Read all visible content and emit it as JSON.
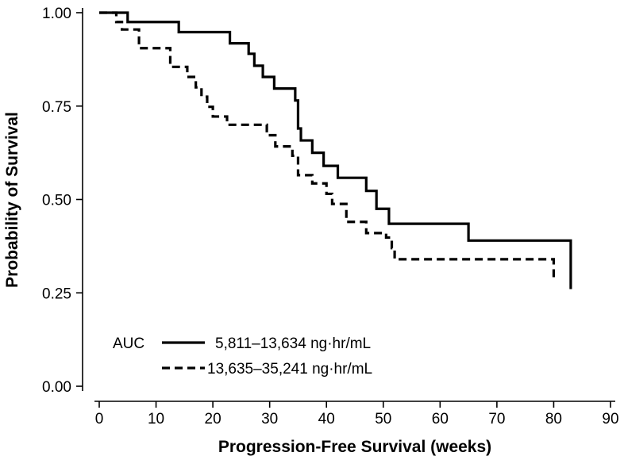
{
  "chart_data": {
    "type": "line",
    "title": "",
    "xlabel": "Progression-Free Survival (weeks)",
    "ylabel": "Probability of Survival",
    "xlim": [
      0,
      90
    ],
    "ylim": [
      0,
      1
    ],
    "x_ticks": [
      0,
      10,
      20,
      30,
      40,
      50,
      60,
      70,
      80,
      90
    ],
    "x_tick_labels": [
      "0",
      "10",
      "20",
      "30",
      "40",
      "50",
      "60",
      "70",
      "80",
      "90"
    ],
    "y_ticks": [
      0.0,
      0.25,
      0.5,
      0.75,
      1.0
    ],
    "y_tick_labels": [
      "0.00",
      "0.25",
      "0.50",
      "0.75",
      "1.00"
    ],
    "grid": false,
    "legend": {
      "title": "AUC",
      "placement": "bottom-left"
    },
    "series": [
      {
        "name": "5,811–13,634 ng·hr/mL",
        "style": "solid",
        "step": true,
        "x": [
          0,
          5,
          14,
          23,
          26.3,
          27.3,
          28.8,
          30.8,
          34.5,
          35,
          35.5,
          37.5,
          39.5,
          42,
          47,
          48.8,
          51,
          65,
          83
        ],
        "y": [
          1.0,
          0.975,
          0.948,
          0.918,
          0.89,
          0.858,
          0.828,
          0.797,
          0.765,
          0.69,
          0.658,
          0.625,
          0.59,
          0.558,
          0.523,
          0.475,
          0.435,
          0.39,
          0.26
        ]
      },
      {
        "name": "13,635–35,241 ng·hr/mL",
        "style": "dashed",
        "step": true,
        "x": [
          0,
          3,
          4,
          7,
          12.5,
          15.5,
          17,
          18,
          19,
          20,
          22.5,
          29.5,
          31,
          34,
          35,
          37.5,
          40,
          41,
          43.5,
          47,
          50.5,
          51.5,
          52,
          80
        ],
        "y": [
          1.0,
          0.975,
          0.955,
          0.905,
          0.855,
          0.828,
          0.8,
          0.775,
          0.748,
          0.722,
          0.7,
          0.672,
          0.642,
          0.617,
          0.565,
          0.543,
          0.515,
          0.488,
          0.44,
          0.41,
          0.398,
          0.37,
          0.34,
          0.285
        ]
      }
    ]
  }
}
